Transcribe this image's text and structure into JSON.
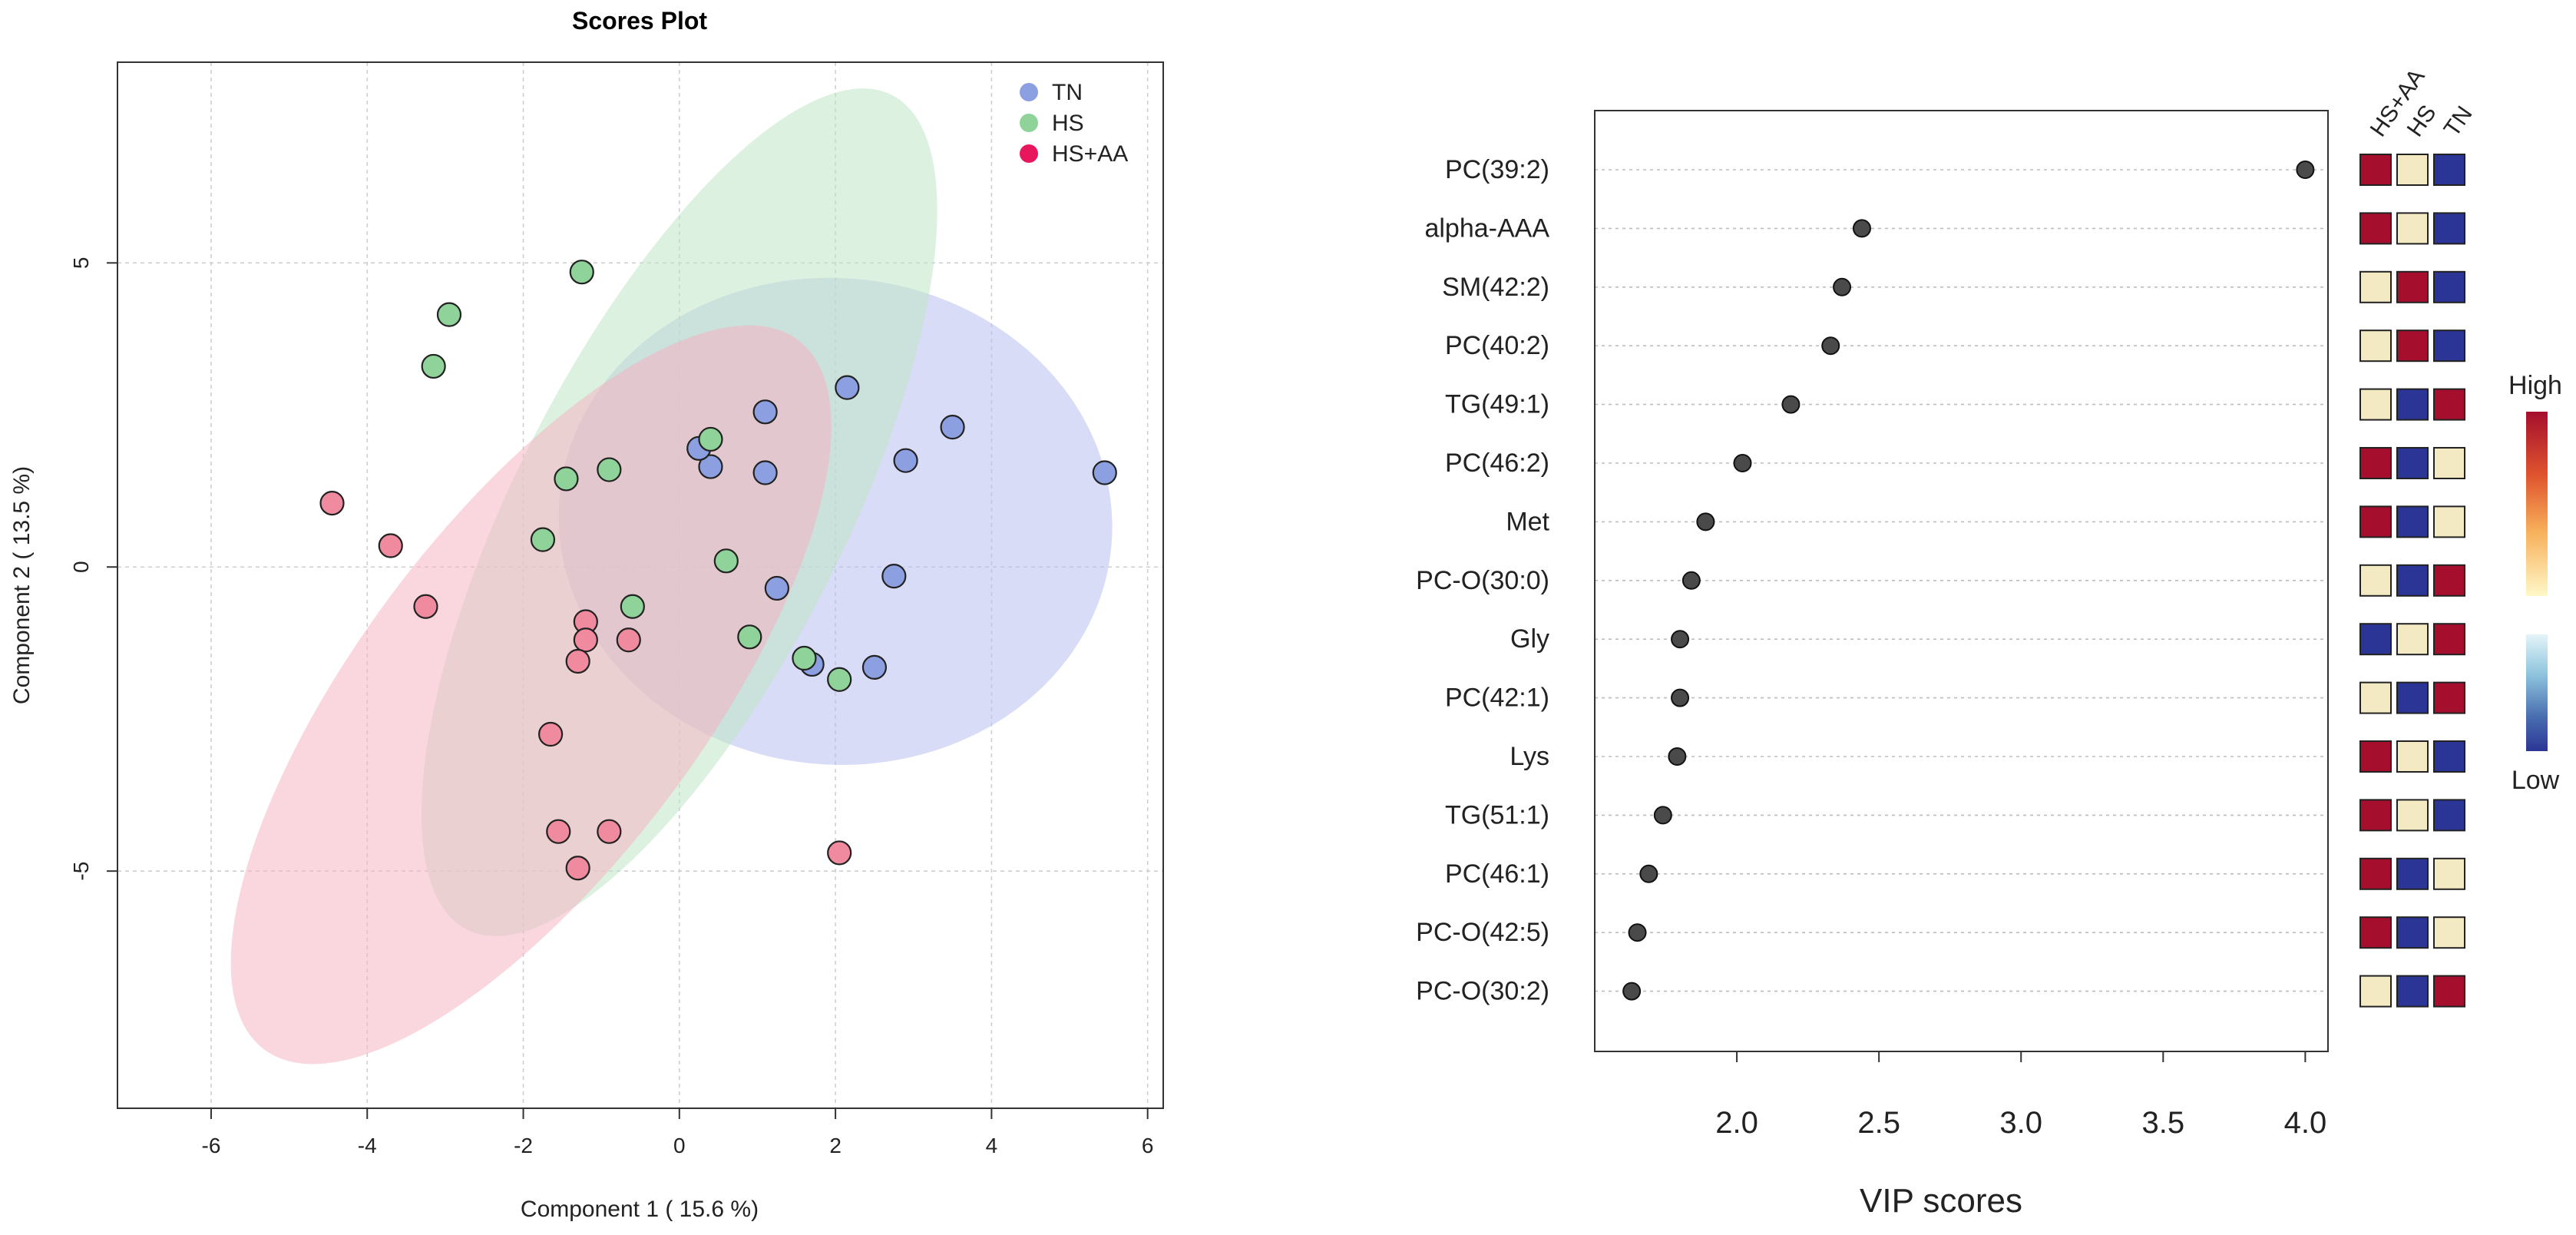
{
  "colors": {
    "tn": "#8c9fe0",
    "hs": "#8fd39a",
    "hsaa": "#f08a9e",
    "tn_fill": "#b8c0f0",
    "hs_fill": "#bfe6c6",
    "hsaa_fill": "#f5b4c2",
    "legend_hsaa": "#e8175d",
    "heat_high": "#a50f2d",
    "heat_mid": "#f3e9c2",
    "heat_low": "#2b3595",
    "vip_dot": "#4a4a4a"
  },
  "chart_data": [
    {
      "type": "scatter",
      "title": "Scores Plot",
      "xlabel": "Component 1 ( 15.6 %)",
      "ylabel": "Component 2 ( 13.5 %)",
      "xlim": [
        -7.2,
        6.2
      ],
      "ylim": [
        -8.9,
        8.3
      ],
      "xticks": [
        -6,
        -4,
        -2,
        0,
        2,
        4,
        6
      ],
      "yticks": [
        -5,
        0,
        5
      ],
      "grid": true,
      "legend_position": "top-right",
      "series": [
        {
          "name": "TN",
          "color_key": "tn",
          "ellipse": {
            "center": [
              2.0,
              0.75
            ],
            "semi_axes": [
              3.55,
              4.0
            ],
            "angle_deg": 5
          },
          "points": [
            [
              5.45,
              1.55
            ],
            [
              3.5,
              2.3
            ],
            [
              2.9,
              1.75
            ],
            [
              2.15,
              2.95
            ],
            [
              2.75,
              -0.15
            ],
            [
              2.5,
              -1.65
            ],
            [
              1.7,
              -1.6
            ],
            [
              1.25,
              -0.35
            ],
            [
              1.1,
              2.55
            ],
            [
              1.1,
              1.55
            ],
            [
              0.4,
              1.65
            ],
            [
              0.25,
              1.95
            ]
          ]
        },
        {
          "name": "HS",
          "color_key": "hs",
          "ellipse": {
            "center": [
              0.0,
              0.9
            ],
            "semi_axes": [
              2.1,
              7.7
            ],
            "angle_deg": 27
          },
          "points": [
            [
              -1.25,
              4.85
            ],
            [
              -2.95,
              4.15
            ],
            [
              -3.15,
              3.3
            ],
            [
              0.4,
              2.1
            ],
            [
              -0.9,
              1.6
            ],
            [
              -1.45,
              1.45
            ],
            [
              -1.75,
              0.45
            ],
            [
              0.6,
              0.1
            ],
            [
              -0.6,
              -0.65
            ],
            [
              0.9,
              -1.15
            ],
            [
              1.6,
              -1.5
            ],
            [
              2.05,
              -1.85
            ]
          ]
        },
        {
          "name": "HS+AA",
          "color_key": "hsaa",
          "ellipse": {
            "center": [
              -1.9,
              -2.1
            ],
            "semi_axes": [
              2.2,
              7.3
            ],
            "angle_deg": 37
          },
          "points": [
            [
              -4.45,
              1.05
            ],
            [
              -3.7,
              0.35
            ],
            [
              -3.25,
              -0.65
            ],
            [
              -1.2,
              -0.9
            ],
            [
              -1.2,
              -1.2
            ],
            [
              -0.65,
              -1.2
            ],
            [
              -1.3,
              -1.55
            ],
            [
              -1.65,
              -2.75
            ],
            [
              -1.55,
              -4.35
            ],
            [
              -0.9,
              -4.35
            ],
            [
              -1.3,
              -4.95
            ],
            [
              2.05,
              -4.7
            ]
          ]
        }
      ]
    },
    {
      "type": "dot",
      "xlabel": "VIP scores",
      "xlim": [
        1.5,
        4.08
      ],
      "xticks": [
        "2.0",
        "2.5",
        "3.0",
        "3.5",
        "4.0"
      ],
      "grid": "horizontal-dotted",
      "features": [
        {
          "name": "PC(39:2)",
          "vip": 4.0,
          "heat": [
            "high",
            "mid",
            "low"
          ]
        },
        {
          "name": "alpha-AAA",
          "vip": 2.44,
          "heat": [
            "high",
            "mid",
            "low"
          ]
        },
        {
          "name": "SM(42:2)",
          "vip": 2.37,
          "heat": [
            "mid",
            "high",
            "low"
          ]
        },
        {
          "name": "PC(40:2)",
          "vip": 2.33,
          "heat": [
            "mid",
            "high",
            "low"
          ]
        },
        {
          "name": "TG(49:1)",
          "vip": 2.19,
          "heat": [
            "mid",
            "low",
            "high"
          ]
        },
        {
          "name": "PC(46:2)",
          "vip": 2.02,
          "heat": [
            "high",
            "low",
            "mid"
          ]
        },
        {
          "name": "Met",
          "vip": 1.89,
          "heat": [
            "high",
            "low",
            "mid"
          ]
        },
        {
          "name": "PC-O(30:0)",
          "vip": 1.84,
          "heat": [
            "mid",
            "low",
            "high"
          ]
        },
        {
          "name": "Gly",
          "vip": 1.8,
          "heat": [
            "low",
            "mid",
            "high"
          ]
        },
        {
          "name": "PC(42:1)",
          "vip": 1.8,
          "heat": [
            "mid",
            "low",
            "high"
          ]
        },
        {
          "name": "Lys",
          "vip": 1.79,
          "heat": [
            "high",
            "mid",
            "low"
          ]
        },
        {
          "name": "TG(51:1)",
          "vip": 1.74,
          "heat": [
            "high",
            "mid",
            "low"
          ]
        },
        {
          "name": "PC(46:1)",
          "vip": 1.69,
          "heat": [
            "high",
            "low",
            "mid"
          ]
        },
        {
          "name": "PC-O(42:5)",
          "vip": 1.65,
          "heat": [
            "high",
            "low",
            "mid"
          ]
        },
        {
          "name": "PC-O(30:2)",
          "vip": 1.63,
          "heat": [
            "mid",
            "low",
            "high"
          ]
        }
      ],
      "heat_columns": [
        "HS+AA",
        "HS",
        "TN"
      ],
      "colorbar": {
        "high_label": "High",
        "low_label": "Low"
      }
    }
  ]
}
